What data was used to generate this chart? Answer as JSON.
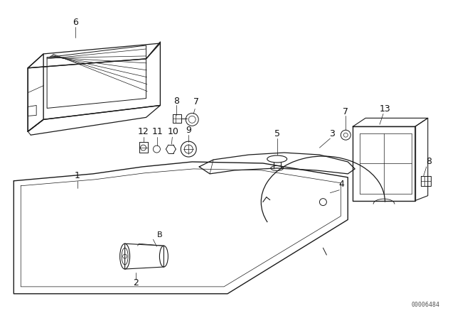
{
  "bg_color": "#ffffff",
  "line_color": "#1a1a1a",
  "label_color": "#111111",
  "fig_width": 6.4,
  "fig_height": 4.48,
  "dpi": 100,
  "watermark": "00006484"
}
